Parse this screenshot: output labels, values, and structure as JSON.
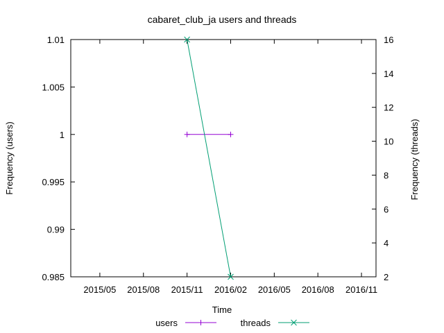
{
  "chart_data": {
    "type": "line",
    "title": "cabaret_club_ja users and threads",
    "xlabel": "Time",
    "ylabel_left": "Frequency (users)",
    "ylabel_right": "Frequency (threads)",
    "x_ticks": [
      "2015/05",
      "2015/08",
      "2015/11",
      "2016/02",
      "2016/05",
      "2016/08",
      "2016/11"
    ],
    "x_range": [
      "2015-03",
      "2016-12"
    ],
    "y_left_ticks": [
      "0.985",
      "0.99",
      "0.995",
      "1",
      "1.005",
      "1.01"
    ],
    "y_left_range": [
      0.985,
      1.01
    ],
    "y_right_ticks": [
      "2",
      "4",
      "6",
      "8",
      "10",
      "12",
      "14",
      "16"
    ],
    "y_right_range": [
      2,
      16
    ],
    "grid": false,
    "legend_position": "bottom",
    "series": [
      {
        "name": "users",
        "axis": "left",
        "color": "#9400d3",
        "marker": "plus",
        "points": [
          {
            "x": "2015-11",
            "y": 1
          },
          {
            "x": "2016-02",
            "y": 1
          }
        ]
      },
      {
        "name": "threads",
        "axis": "right",
        "color": "#009e73",
        "marker": "cross",
        "points": [
          {
            "x": "2015-11",
            "y": 16
          },
          {
            "x": "2016-02",
            "y": 2
          }
        ]
      }
    ]
  }
}
